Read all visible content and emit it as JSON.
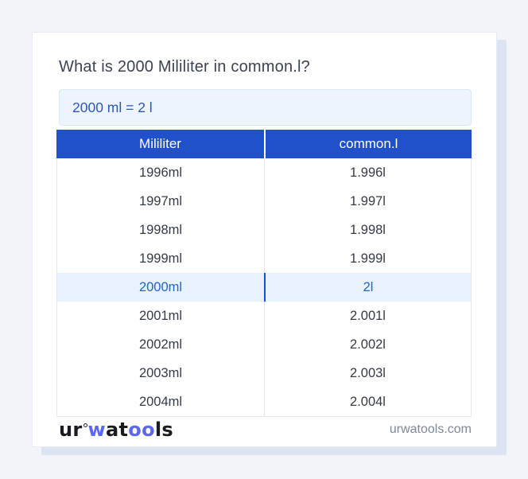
{
  "page": {
    "background_color": "#f3f4f9"
  },
  "card": {
    "background_color": "#ffffff",
    "shadow_color": "#dce3f1"
  },
  "title": "What is 2000 Mililiter in common.l?",
  "answer": {
    "text": "2000 ml = 2 l",
    "background_color": "#edf4fd",
    "text_color": "#2b57b5"
  },
  "table": {
    "header_background": "#2150cb",
    "highlight_background": "#e8f2fd",
    "highlight_text_color": "#2463c8",
    "headers": [
      "Mililiter",
      "common.l"
    ],
    "rows": [
      {
        "ml": "1996ml",
        "l": "1.996l",
        "highlight": false
      },
      {
        "ml": "1997ml",
        "l": "1.997l",
        "highlight": false
      },
      {
        "ml": "1998ml",
        "l": "1.998l",
        "highlight": false
      },
      {
        "ml": "1999ml",
        "l": "1.999l",
        "highlight": false
      },
      {
        "ml": "2000ml",
        "l": "2l",
        "highlight": true
      },
      {
        "ml": "2001ml",
        "l": "2.001l",
        "highlight": false
      },
      {
        "ml": "2002ml",
        "l": "2.002l",
        "highlight": false
      },
      {
        "ml": "2003ml",
        "l": "2.003l",
        "highlight": false
      },
      {
        "ml": "2004ml",
        "l": "2.004l",
        "highlight": false
      }
    ]
  },
  "footer": {
    "logo": {
      "ur": "ur",
      "w": "w",
      "at": "at",
      "oo": "oo",
      "ls": "ls",
      "blue_color": "#5b68ee",
      "dark_color": "#1a1b20"
    },
    "site": "urwatools.com"
  }
}
